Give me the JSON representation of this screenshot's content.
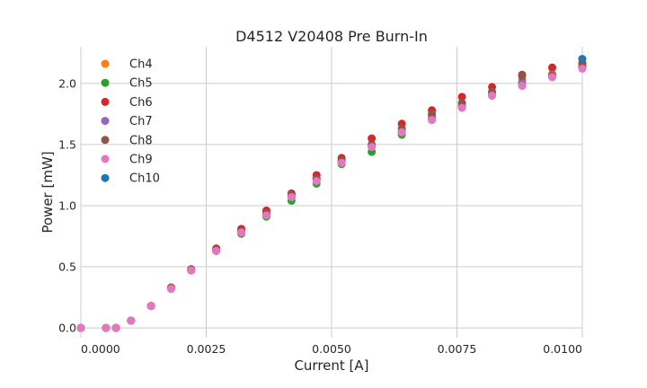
{
  "chart_data": {
    "type": "scatter",
    "title": "D4512 V20408 Pre Burn-In",
    "xlabel": "Current [A]",
    "ylabel": "Power [mW]",
    "xlim": [
      0.0,
      0.01
    ],
    "ylim": [
      -0.08,
      2.3
    ],
    "x_ticks": [
      "0.0000",
      "0.0025",
      "0.0050",
      "0.0075",
      "0.0100"
    ],
    "y_ticks": [
      "0.0",
      "0.5",
      "1.0",
      "1.5",
      "2.0"
    ],
    "grid": true,
    "legend_position": "top-left",
    "series": [
      {
        "name": "Ch4",
        "color": "#ff7f0e",
        "points": [
          [
            0.0,
            0.0
          ],
          [
            0.0005,
            0.0
          ],
          [
            0.0007,
            0.0
          ],
          [
            0.001,
            0.06
          ],
          [
            0.0014,
            0.18
          ],
          [
            0.0018,
            0.33
          ],
          [
            0.0022,
            0.48
          ],
          [
            0.0027,
            0.64
          ],
          [
            0.0032,
            0.79
          ],
          [
            0.0037,
            0.93
          ],
          [
            0.0042,
            1.07
          ],
          [
            0.0047,
            1.22
          ],
          [
            0.0052,
            1.36
          ],
          [
            0.0058,
            1.48
          ],
          [
            0.0064,
            1.61
          ],
          [
            0.007,
            1.74
          ],
          [
            0.0076,
            1.84
          ],
          [
            0.0082,
            1.93
          ],
          [
            0.0088,
            2.03
          ],
          [
            0.0094,
            2.08
          ],
          [
            0.01,
            2.17
          ]
        ]
      },
      {
        "name": "Ch5",
        "color": "#2ca02c",
        "points": [
          [
            0.0,
            0.0
          ],
          [
            0.0005,
            0.0
          ],
          [
            0.0007,
            0.0
          ],
          [
            0.001,
            0.06
          ],
          [
            0.0014,
            0.18
          ],
          [
            0.0018,
            0.32
          ],
          [
            0.0022,
            0.47
          ],
          [
            0.0027,
            0.63
          ],
          [
            0.0032,
            0.77
          ],
          [
            0.0037,
            0.91
          ],
          [
            0.0042,
            1.04
          ],
          [
            0.0047,
            1.18
          ],
          [
            0.0052,
            1.34
          ],
          [
            0.0058,
            1.44
          ],
          [
            0.0064,
            1.58
          ],
          [
            0.007,
            1.71
          ],
          [
            0.0076,
            1.81
          ],
          [
            0.0082,
            1.9
          ],
          [
            0.0088,
            2.0
          ],
          [
            0.0094,
            2.06
          ],
          [
            0.01,
            2.13
          ]
        ]
      },
      {
        "name": "Ch6",
        "color": "#d62728",
        "points": [
          [
            0.0,
            0.0
          ],
          [
            0.0005,
            0.0
          ],
          [
            0.0007,
            0.0
          ],
          [
            0.001,
            0.06
          ],
          [
            0.0014,
            0.18
          ],
          [
            0.0018,
            0.33
          ],
          [
            0.0022,
            0.48
          ],
          [
            0.0027,
            0.65
          ],
          [
            0.0032,
            0.81
          ],
          [
            0.0037,
            0.96
          ],
          [
            0.0042,
            1.1
          ],
          [
            0.0047,
            1.25
          ],
          [
            0.0052,
            1.39
          ],
          [
            0.0058,
            1.55
          ],
          [
            0.0064,
            1.67
          ],
          [
            0.007,
            1.78
          ],
          [
            0.0076,
            1.89
          ],
          [
            0.0082,
            1.97
          ],
          [
            0.0088,
            2.07
          ],
          [
            0.0094,
            2.13
          ],
          [
            0.01,
            2.16
          ]
        ]
      },
      {
        "name": "Ch7",
        "color": "#9467bd",
        "points": [
          [
            0.0,
            0.0
          ],
          [
            0.0005,
            0.0
          ],
          [
            0.0007,
            0.0
          ],
          [
            0.001,
            0.06
          ],
          [
            0.0014,
            0.18
          ],
          [
            0.0018,
            0.32
          ],
          [
            0.0022,
            0.47
          ],
          [
            0.0027,
            0.63
          ],
          [
            0.0032,
            0.78
          ],
          [
            0.0037,
            0.93
          ],
          [
            0.0042,
            1.08
          ],
          [
            0.0047,
            1.21
          ],
          [
            0.0052,
            1.36
          ],
          [
            0.0058,
            1.49
          ],
          [
            0.0064,
            1.6
          ],
          [
            0.007,
            1.72
          ],
          [
            0.0076,
            1.82
          ],
          [
            0.0082,
            1.92
          ],
          [
            0.0088,
            2.01
          ],
          [
            0.0094,
            2.07
          ],
          [
            0.01,
            2.14
          ]
        ]
      },
      {
        "name": "Ch8",
        "color": "#8c564b",
        "points": [
          [
            0.0,
            0.0
          ],
          [
            0.0005,
            0.0
          ],
          [
            0.0007,
            0.0
          ],
          [
            0.001,
            0.06
          ],
          [
            0.0014,
            0.18
          ],
          [
            0.0018,
            0.33
          ],
          [
            0.0022,
            0.48
          ],
          [
            0.0027,
            0.64
          ],
          [
            0.0032,
            0.79
          ],
          [
            0.0037,
            0.94
          ],
          [
            0.0042,
            1.09
          ],
          [
            0.0047,
            1.22
          ],
          [
            0.0052,
            1.37
          ],
          [
            0.0058,
            1.5
          ],
          [
            0.0064,
            1.63
          ],
          [
            0.007,
            1.75
          ],
          [
            0.0076,
            1.84
          ],
          [
            0.0082,
            1.93
          ],
          [
            0.0088,
            2.06
          ],
          [
            0.0094,
            2.06
          ],
          [
            0.01,
            2.14
          ]
        ]
      },
      {
        "name": "Ch9",
        "color": "#e377c2",
        "points": [
          [
            0.0,
            0.0
          ],
          [
            0.0005,
            0.0
          ],
          [
            0.0007,
            0.0
          ],
          [
            0.001,
            0.06
          ],
          [
            0.0014,
            0.18
          ],
          [
            0.0018,
            0.32
          ],
          [
            0.0022,
            0.47
          ],
          [
            0.0027,
            0.63
          ],
          [
            0.0032,
            0.78
          ],
          [
            0.0037,
            0.92
          ],
          [
            0.0042,
            1.07
          ],
          [
            0.0047,
            1.2
          ],
          [
            0.0052,
            1.35
          ],
          [
            0.0058,
            1.48
          ],
          [
            0.0064,
            1.6
          ],
          [
            0.007,
            1.7
          ],
          [
            0.0076,
            1.8
          ],
          [
            0.0082,
            1.9
          ],
          [
            0.0088,
            1.98
          ],
          [
            0.0094,
            2.05
          ],
          [
            0.01,
            2.12
          ]
        ]
      },
      {
        "name": "Ch10",
        "color": "#1f77b4",
        "points": [
          [
            0.01,
            2.2
          ]
        ]
      }
    ]
  }
}
